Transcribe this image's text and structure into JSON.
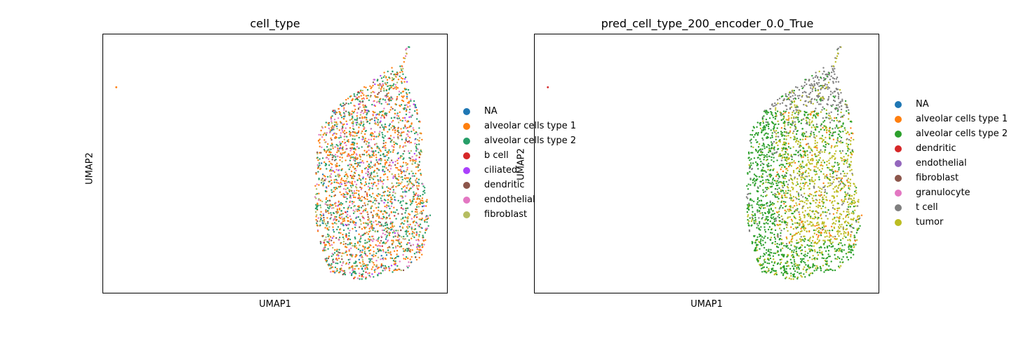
{
  "chart_data": [
    {
      "type": "scatter",
      "title": "cell_type",
      "xlabel": "UMAP1",
      "ylabel": "UMAP2",
      "legend_position": "right",
      "ticks": "none",
      "series": [
        {
          "name": "NA",
          "color": "#1f77b4"
        },
        {
          "name": "alveolar cells type 1",
          "color": "#ff7f0e"
        },
        {
          "name": "alveolar cells type 2",
          "color": "#279e68"
        },
        {
          "name": "b cell",
          "color": "#d62728"
        },
        {
          "name": "ciliated",
          "color": "#aa40fc"
        },
        {
          "name": "dendritic",
          "color": "#8c564b"
        },
        {
          "name": "endothelial",
          "color": "#e377c2"
        },
        {
          "name": "fibroblast",
          "color": "#b5bd61"
        }
      ],
      "point_mix": {
        "alveolar cells type 1": 0.34,
        "alveolar cells type 2": 0.3,
        "endothelial": 0.14,
        "fibroblast": 0.1,
        "dendritic": 0.06,
        "NA": 0.03,
        "ciliated": 0.02,
        "b cell": 0.01
      },
      "outlier": {
        "x": -9.5,
        "y": 6.3,
        "series": "alveolar cells type 1"
      }
    },
    {
      "type": "scatter",
      "title": "pred_cell_type_200_encoder_0.0_True",
      "xlabel": "UMAP1",
      "ylabel": "UMAP2",
      "legend_position": "right",
      "ticks": "none",
      "series": [
        {
          "name": "NA",
          "color": "#1f77b4"
        },
        {
          "name": "alveolar cells type 1",
          "color": "#ff7f0e"
        },
        {
          "name": "alveolar cells type 2",
          "color": "#2ca02c"
        },
        {
          "name": "dendritic",
          "color": "#d62728"
        },
        {
          "name": "endothelial",
          "color": "#9467bd"
        },
        {
          "name": "fibroblast",
          "color": "#8c564b"
        },
        {
          "name": "granulocyte",
          "color": "#e377c2"
        },
        {
          "name": "t cell",
          "color": "#7f7f7f"
        },
        {
          "name": "tumor",
          "color": "#bcbd22"
        }
      ],
      "regions": {
        "top": "t cell",
        "left": "alveolar cells type 2",
        "center_right": "tumor",
        "bottom": "alveolar cells type 2"
      },
      "outlier": {
        "x": -9.5,
        "y": 6.3,
        "series": "dendritic"
      }
    }
  ]
}
